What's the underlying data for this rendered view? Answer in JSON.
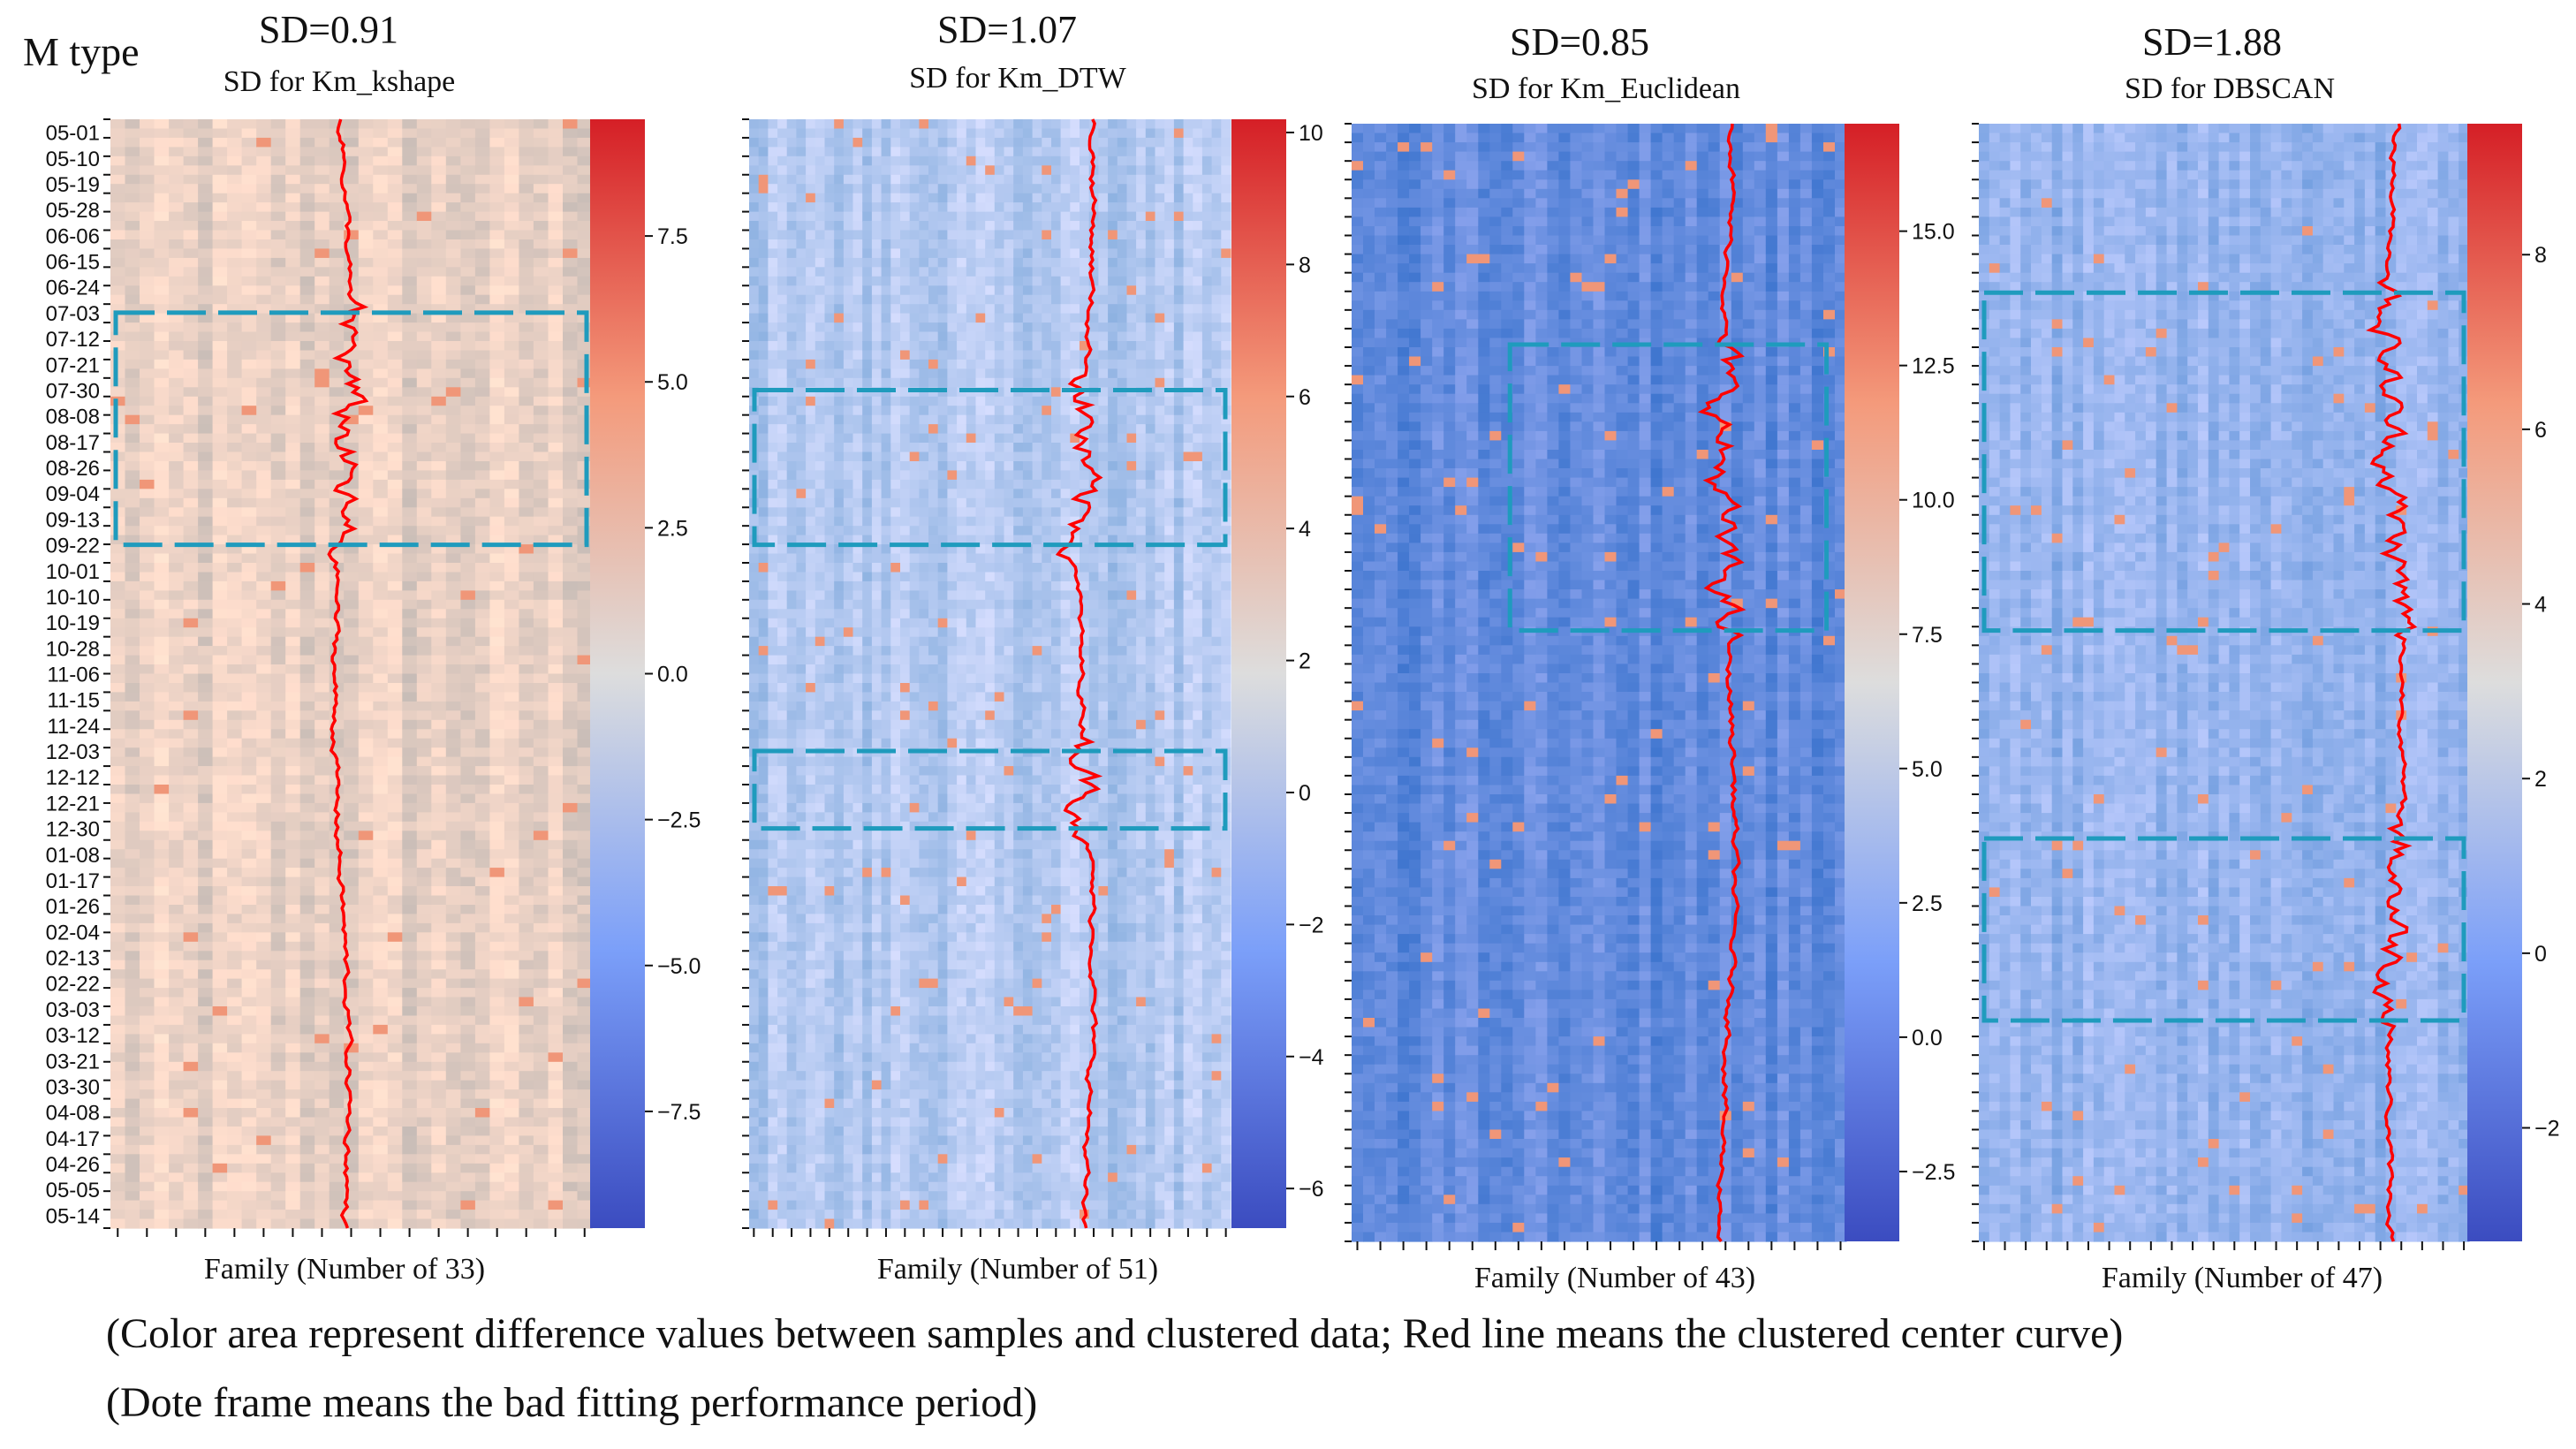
{
  "header": {
    "m_type": "M type"
  },
  "caption": {
    "line1": "(Color area represent difference values between samples and clustered data; Red line means the clustered center curve)",
    "line2": "(Dote frame means the bad fitting performance period)"
  },
  "colors": {
    "cold": "#3b4cc0",
    "mid": "#dddddd",
    "hot": "#d51f26",
    "center_line": "#ff0000",
    "frame": "#1f9bbd"
  },
  "chart_data": [
    {
      "type": "heatmap",
      "sd_label": "SD=0.91",
      "title": "SD for Km_kshape",
      "xlabel": "Family (Number of 33)",
      "n_families": 33,
      "y_tick_labels": [
        "05-01",
        "05-10",
        "05-19",
        "05-28",
        "06-06",
        "06-15",
        "06-24",
        "07-03",
        "07-12",
        "07-21",
        "07-30",
        "08-08",
        "08-17",
        "08-26",
        "09-04",
        "09-13",
        "09-22",
        "10-01",
        "10-10",
        "10-19",
        "10-28",
        "11-06",
        "11-15",
        "11-24",
        "12-03",
        "12-12",
        "12-21",
        "12-30",
        "01-08",
        "01-17",
        "01-26",
        "02-04",
        "02-13",
        "02-22",
        "03-03",
        "03-12",
        "03-21",
        "03-30",
        "04-08",
        "04-17",
        "04-26",
        "05-05",
        "05-14"
      ],
      "colorbar": {
        "ticks": [
          7.5,
          5.0,
          2.5,
          0.0,
          -2.5,
          -5.0,
          -7.5
        ],
        "tick_labels": [
          "7.5",
          "5.0",
          "2.5",
          "0.0",
          "−2.5",
          "−5.0",
          "−7.5"
        ],
        "range": [
          -9.5,
          9.5
        ]
      },
      "frames": [
        [
          "07-03",
          "09-22"
        ]
      ]
    },
    {
      "type": "heatmap",
      "sd_label": "SD=1.07",
      "title": "SD for Km_DTW",
      "xlabel": "Family (Number of 51)",
      "n_families": 51,
      "colorbar": {
        "ticks": [
          10,
          8,
          6,
          4,
          2,
          0,
          -2,
          -4,
          -6
        ],
        "tick_labels": [
          "10",
          "8",
          "6",
          "4",
          "2",
          "0",
          "−2",
          "−4",
          "−6"
        ],
        "range": [
          -6.6,
          10.2
        ]
      },
      "frames": [
        [
          "07-30",
          "09-22"
        ],
        [
          "12-03",
          "12-30"
        ]
      ]
    },
    {
      "type": "heatmap",
      "sd_label": "SD=0.85",
      "title": "SD for Km_Euclidean",
      "xlabel": "Family (Number of 43)",
      "n_families": 43,
      "colorbar": {
        "ticks": [
          15.0,
          12.5,
          10.0,
          7.5,
          5.0,
          2.5,
          0.0,
          -2.5
        ],
        "tick_labels": [
          "15.0",
          "12.5",
          "10.0",
          "7.5",
          "5.0",
          "2.5",
          "0.0",
          "−2.5"
        ],
        "range": [
          -3.8,
          17.0
        ]
      },
      "frames": [
        [
          "07-12",
          "10-19"
        ]
      ]
    },
    {
      "type": "heatmap",
      "sd_label": "SD=1.88",
      "title": "SD for DBSCAN",
      "xlabel": "Family (Number of 47)",
      "n_families": 47,
      "colorbar": {
        "ticks": [
          8,
          6,
          4,
          2,
          0,
          -2
        ],
        "tick_labels": [
          "8",
          "6",
          "4",
          "2",
          "0",
          "−2"
        ],
        "range": [
          -3.3,
          9.5
        ]
      },
      "frames": [
        [
          "06-24",
          "10-19"
        ],
        [
          "12-30",
          "03-03"
        ]
      ]
    }
  ]
}
